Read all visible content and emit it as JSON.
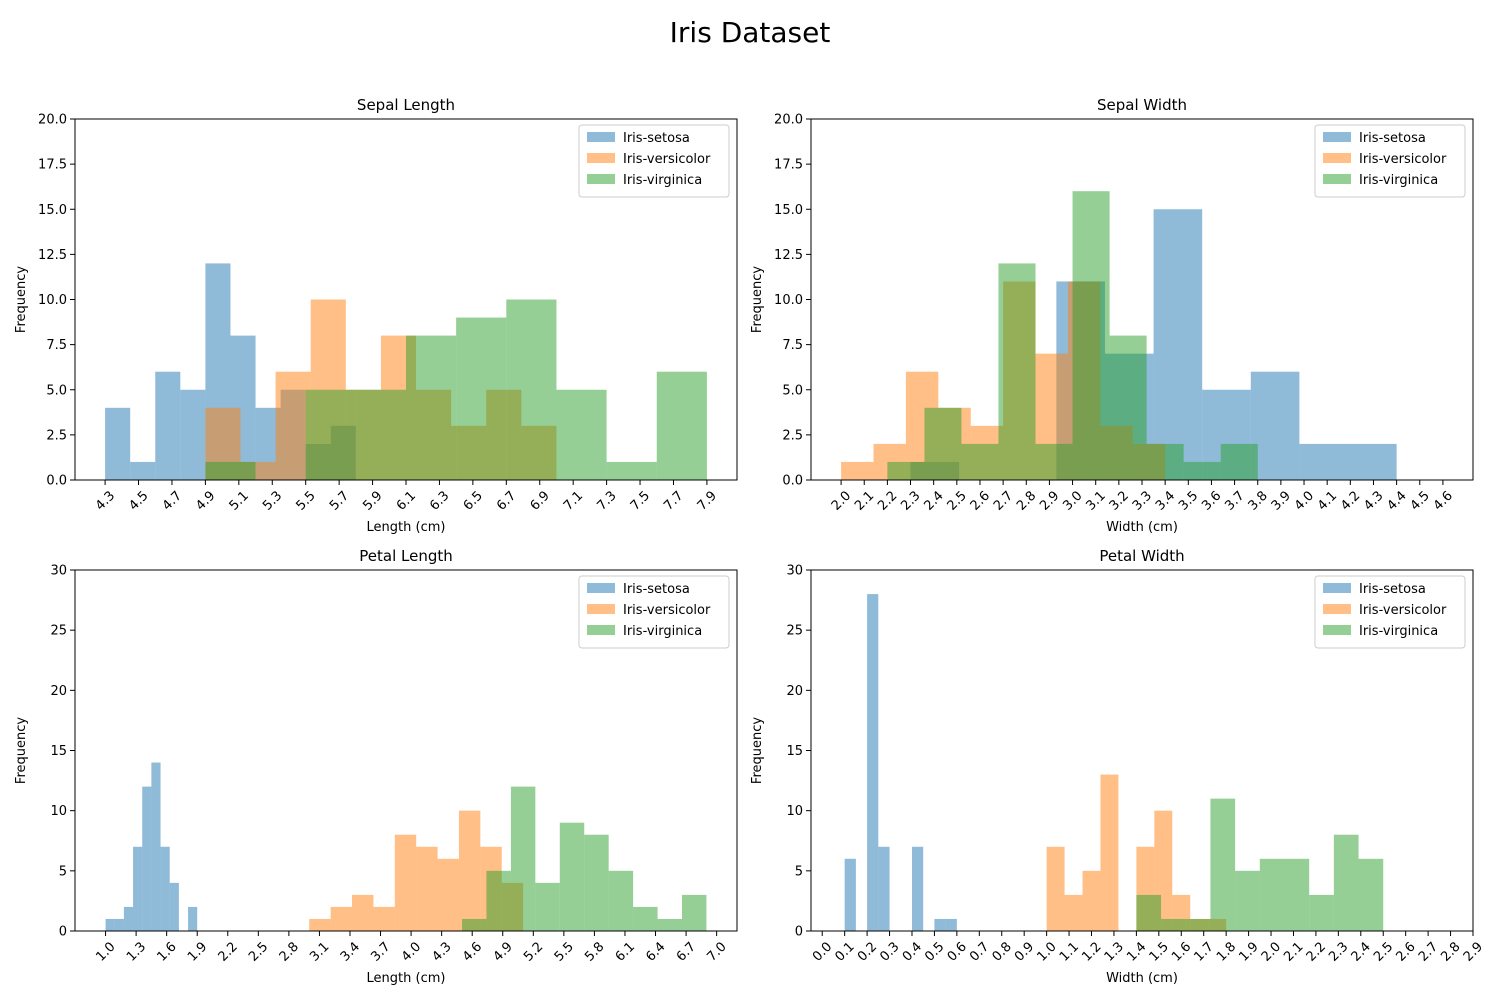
{
  "figure_title": "Iris Dataset",
  "colors": {
    "Iris-setosa": "#1f77b4",
    "Iris-versicolor": "#ff7f0e",
    "Iris-virginica": "#2ca02c"
  },
  "bar_alpha": 0.5,
  "chart_data": [
    {
      "type": "bar",
      "title": "Sepal Length",
      "xlabel": "Length (cm)",
      "ylabel": "Frequency",
      "xlim": [
        4.12,
        8.08
      ],
      "ylim": [
        0,
        20
      ],
      "yticks": [
        0,
        2.5,
        5,
        7.5,
        10,
        12.5,
        15,
        17.5,
        20
      ],
      "ytick_labels": [
        "0.0",
        "2.5",
        "5.0",
        "7.5",
        "10.0",
        "12.5",
        "15.0",
        "17.5",
        "20.0"
      ],
      "xticks": [
        4.3,
        4.5,
        4.7,
        4.9,
        5.1,
        5.3,
        5.5,
        5.7,
        5.9,
        6.1,
        6.3,
        6.5,
        6.7,
        6.9,
        7.1,
        7.3,
        7.5,
        7.7,
        7.9
      ],
      "xtick_labels": [
        "4.3",
        "4.5",
        "4.7",
        "4.9",
        "5.1",
        "5.3",
        "5.5",
        "5.7",
        "5.9",
        "6.1",
        "6.3",
        "6.5",
        "6.7",
        "6.9",
        "7.1",
        "7.3",
        "7.5",
        "7.7",
        "7.9"
      ],
      "legend": "upper right",
      "series": [
        {
          "name": "Iris-setosa",
          "bin_edges": [
            4.3,
            4.45,
            4.6,
            4.75,
            4.9,
            5.05,
            5.2,
            5.35,
            5.5,
            5.65,
            5.8
          ],
          "counts": [
            4,
            1,
            6,
            5,
            12,
            8,
            4,
            5,
            2,
            3
          ]
        },
        {
          "name": "Iris-versicolor",
          "bin_edges": [
            4.9,
            5.11,
            5.32,
            5.53,
            5.74,
            5.95,
            6.16,
            6.37,
            6.58,
            6.79,
            7.0
          ],
          "counts": [
            4,
            1,
            6,
            10,
            5,
            8,
            5,
            3,
            5,
            3
          ]
        },
        {
          "name": "Iris-virginica",
          "bin_edges": [
            4.9,
            5.2,
            5.5,
            5.8,
            6.1,
            6.4,
            6.7,
            7.0,
            7.3,
            7.6,
            7.9
          ],
          "counts": [
            1,
            0,
            5,
            5,
            8,
            9,
            10,
            5,
            1,
            6
          ]
        }
      ]
    },
    {
      "type": "bar",
      "title": "Sepal Width",
      "xlabel": "Width (cm)",
      "ylabel": "Frequency",
      "xlim": [
        1.87,
        4.73
      ],
      "ylim": [
        0,
        20
      ],
      "yticks": [
        0,
        2.5,
        5,
        7.5,
        10,
        12.5,
        15,
        17.5,
        20
      ],
      "ytick_labels": [
        "0.0",
        "2.5",
        "5.0",
        "7.5",
        "10.0",
        "12.5",
        "15.0",
        "17.5",
        "20.0"
      ],
      "xticks": [
        2.0,
        2.1,
        2.2,
        2.3,
        2.4,
        2.5,
        2.6,
        2.7,
        2.8,
        2.9,
        3.0,
        3.1,
        3.2,
        3.3,
        3.4,
        3.5,
        3.6,
        3.7,
        3.8,
        3.9,
        4.0,
        4.1,
        4.2,
        4.3,
        4.4,
        4.5,
        4.6
      ],
      "xtick_labels": [
        "2.0",
        "2.1",
        "2.2",
        "2.3",
        "2.4",
        "2.5",
        "2.6",
        "2.7",
        "2.8",
        "2.9",
        "3.0",
        "3.1",
        "3.2",
        "3.3",
        "3.4",
        "3.5",
        "3.6",
        "3.7",
        "3.8",
        "3.9",
        "4.0",
        "4.1",
        "4.2",
        "4.3",
        "4.4",
        "4.5",
        "4.6"
      ],
      "legend": "upper right",
      "series": [
        {
          "name": "Iris-setosa",
          "bin_edges": [
            2.3,
            2.51,
            2.72,
            2.93,
            3.14,
            3.35,
            3.56,
            3.77,
            3.98,
            4.19,
            4.4
          ],
          "counts": [
            1,
            0,
            0,
            11,
            7,
            15,
            5,
            6,
            2,
            2
          ]
        },
        {
          "name": "Iris-versicolor",
          "bin_edges": [
            2.0,
            2.14,
            2.28,
            2.42,
            2.56,
            2.7,
            2.84,
            2.98,
            3.12,
            3.26,
            3.4
          ],
          "counts": [
            1,
            2,
            6,
            4,
            3,
            11,
            7,
            11,
            3,
            2
          ]
        },
        {
          "name": "Iris-virginica",
          "bin_edges": [
            2.2,
            2.36,
            2.52,
            2.68,
            2.84,
            3.0,
            3.16,
            3.32,
            3.48,
            3.64,
            3.8
          ],
          "counts": [
            1,
            4,
            2,
            12,
            2,
            16,
            8,
            2,
            1,
            2
          ]
        }
      ]
    },
    {
      "type": "bar",
      "title": "Petal Length",
      "xlabel": "Length (cm)",
      "ylabel": "Frequency",
      "xlim": [
        0.7,
        7.2
      ],
      "ylim": [
        0,
        30
      ],
      "yticks": [
        0,
        5,
        10,
        15,
        20,
        25,
        30
      ],
      "ytick_labels": [
        "0",
        "5",
        "10",
        "15",
        "20",
        "25",
        "30"
      ],
      "xticks": [
        1.0,
        1.3,
        1.6,
        1.9,
        2.2,
        2.5,
        2.8,
        3.1,
        3.4,
        3.7,
        4.0,
        4.3,
        4.6,
        4.9,
        5.2,
        5.5,
        5.8,
        6.1,
        6.4,
        6.7,
        7.0
      ],
      "xtick_labels": [
        "1.0",
        "1.3",
        "1.6",
        "1.9",
        "2.2",
        "2.5",
        "2.8",
        "3.1",
        "3.4",
        "3.7",
        "4.0",
        "4.3",
        "4.6",
        "4.9",
        "5.2",
        "5.5",
        "5.8",
        "6.1",
        "6.4",
        "6.7",
        "7.0"
      ],
      "legend": "upper right",
      "series": [
        {
          "name": "Iris-setosa",
          "bin_edges": [
            1.0,
            1.09,
            1.18,
            1.27,
            1.36,
            1.45,
            1.54,
            1.63,
            1.72,
            1.81,
            1.9
          ],
          "counts": [
            1,
            1,
            2,
            7,
            12,
            14,
            7,
            4,
            0,
            2
          ]
        },
        {
          "name": "Iris-versicolor",
          "bin_edges": [
            3.0,
            3.21,
            3.42,
            3.63,
            3.84,
            4.05,
            4.26,
            4.47,
            4.68,
            4.89,
            5.1
          ],
          "counts": [
            1,
            2,
            3,
            2,
            8,
            7,
            6,
            10,
            7,
            4
          ]
        },
        {
          "name": "Iris-virginica",
          "bin_edges": [
            4.5,
            4.74,
            4.98,
            5.22,
            5.46,
            5.7,
            5.94,
            6.18,
            6.42,
            6.66,
            6.9
          ],
          "counts": [
            1,
            5,
            12,
            4,
            9,
            8,
            5,
            2,
            1,
            3
          ]
        }
      ]
    },
    {
      "type": "bar",
      "title": "Petal Width",
      "xlabel": "Width (cm)",
      "ylabel": "Frequency",
      "xlim": [
        -0.05,
        2.9
      ],
      "ylim": [
        0,
        30
      ],
      "yticks": [
        0,
        5,
        10,
        15,
        20,
        25,
        30
      ],
      "ytick_labels": [
        "0",
        "5",
        "10",
        "15",
        "20",
        "25",
        "30"
      ],
      "xticks": [
        0.0,
        0.1,
        0.2,
        0.3,
        0.4,
        0.5,
        0.6,
        0.7,
        0.8,
        0.9,
        1.0,
        1.1,
        1.2,
        1.3,
        1.4,
        1.5,
        1.6,
        1.7,
        1.8,
        1.9,
        2.0,
        2.1,
        2.2,
        2.3,
        2.4,
        2.5,
        2.6,
        2.7,
        2.8,
        2.9
      ],
      "xtick_labels": [
        "0.0",
        "0.1",
        "0.2",
        "0.3",
        "0.4",
        "0.5",
        "0.6",
        "0.7",
        "0.8",
        "0.9",
        "1.0",
        "1.1",
        "1.2",
        "1.3",
        "1.4",
        "1.5",
        "1.6",
        "1.7",
        "1.8",
        "1.9",
        "2.0",
        "2.1",
        "2.2",
        "2.3",
        "2.4",
        "2.5",
        "2.6",
        "2.7",
        "2.8",
        "2.9"
      ],
      "legend": "upper right",
      "series": [
        {
          "name": "Iris-setosa",
          "bin_edges": [
            0.1,
            0.15,
            0.2,
            0.25,
            0.3,
            0.35,
            0.4,
            0.45,
            0.5,
            0.55,
            0.6
          ],
          "counts": [
            6,
            0,
            28,
            7,
            0,
            0,
            7,
            0,
            1,
            1
          ]
        },
        {
          "name": "Iris-versicolor",
          "bin_edges": [
            1.0,
            1.08,
            1.16,
            1.24,
            1.32,
            1.4,
            1.48,
            1.56,
            1.64,
            1.72,
            1.8
          ],
          "counts": [
            7,
            3,
            5,
            13,
            0,
            7,
            10,
            3,
            1,
            1
          ]
        },
        {
          "name": "Iris-virginica",
          "bin_edges": [
            1.4,
            1.51,
            1.62,
            1.73,
            1.84,
            1.95,
            2.06,
            2.17,
            2.28,
            2.39,
            2.5
          ],
          "counts": [
            3,
            1,
            1,
            11,
            5,
            6,
            6,
            3,
            8,
            6
          ]
        }
      ]
    }
  ]
}
